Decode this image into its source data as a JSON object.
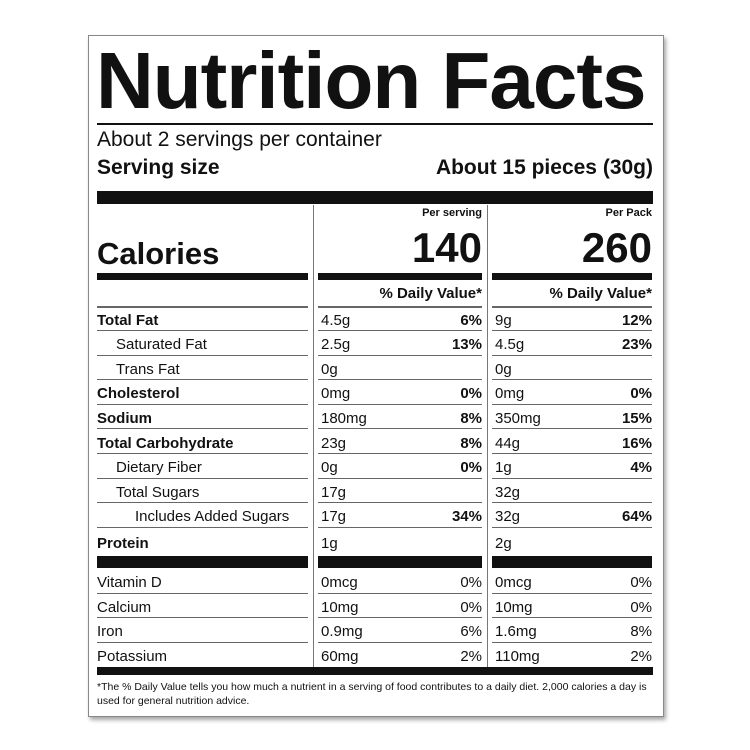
{
  "title": "Nutrition Facts",
  "servings_per_container": "About 2 servings per container",
  "serving_size": {
    "label": "Serving size",
    "value": "About 15 pieces (30g)"
  },
  "calories": {
    "label": "Calories",
    "per_serving_label": "Per serving",
    "per_serving": "140",
    "per_pack_label": "Per Pack",
    "per_pack": "260"
  },
  "daily_value_header": "% Daily Value*",
  "nutrients": [
    {
      "name": "Total Fat",
      "bold": true,
      "indent": 0,
      "serving": "4.5g",
      "serving_dv": "6%",
      "pack": "9g",
      "pack_dv": "12%"
    },
    {
      "name": "Saturated Fat",
      "bold": false,
      "indent": 1,
      "serving": "2.5g",
      "serving_dv": "13%",
      "pack": "4.5g",
      "pack_dv": "23%"
    },
    {
      "name": "Trans Fat",
      "bold": false,
      "indent": 1,
      "serving": "0g",
      "serving_dv": "",
      "pack": "0g",
      "pack_dv": ""
    },
    {
      "name": "Cholesterol",
      "bold": true,
      "indent": 0,
      "serving": "0mg",
      "serving_dv": "0%",
      "pack": "0mg",
      "pack_dv": "0%"
    },
    {
      "name": "Sodium",
      "bold": true,
      "indent": 0,
      "serving": "180mg",
      "serving_dv": "8%",
      "pack": "350mg",
      "pack_dv": "15%"
    },
    {
      "name": "Total Carbohydrate",
      "bold": true,
      "indent": 0,
      "serving": "23g",
      "serving_dv": "8%",
      "pack": "44g",
      "pack_dv": "16%"
    },
    {
      "name": "Dietary Fiber",
      "bold": false,
      "indent": 1,
      "serving": "0g",
      "serving_dv": "0%",
      "pack": "1g",
      "pack_dv": "4%"
    },
    {
      "name": "Total Sugars",
      "bold": false,
      "indent": 1,
      "serving": "17g",
      "serving_dv": "",
      "pack": "32g",
      "pack_dv": ""
    },
    {
      "name": "Includes Added Sugars",
      "bold": false,
      "indent": 2,
      "serving": "17g",
      "serving_dv": "34%",
      "pack": "32g",
      "pack_dv": "64%"
    },
    {
      "name": "Protein",
      "bold": true,
      "indent": 0,
      "serving": "1g",
      "serving_dv": "",
      "pack": "2g",
      "pack_dv": ""
    }
  ],
  "vitamins": [
    {
      "name": "Vitamin D",
      "serving": "0mcg",
      "serving_dv": "0%",
      "pack": "0mcg",
      "pack_dv": "0%"
    },
    {
      "name": "Calcium",
      "serving": "10mg",
      "serving_dv": "0%",
      "pack": "10mg",
      "pack_dv": "0%"
    },
    {
      "name": "Iron",
      "serving": "0.9mg",
      "serving_dv": "6%",
      "pack": "1.6mg",
      "pack_dv": "8%"
    },
    {
      "name": "Potassium",
      "serving": "60mg",
      "serving_dv": "2%",
      "pack": "110mg",
      "pack_dv": "2%"
    }
  ],
  "footnote": "*The % Daily Value tells you how much a nutrient in a serving of food contributes to a daily diet. 2,000 calories a day is used for general nutrition advice."
}
